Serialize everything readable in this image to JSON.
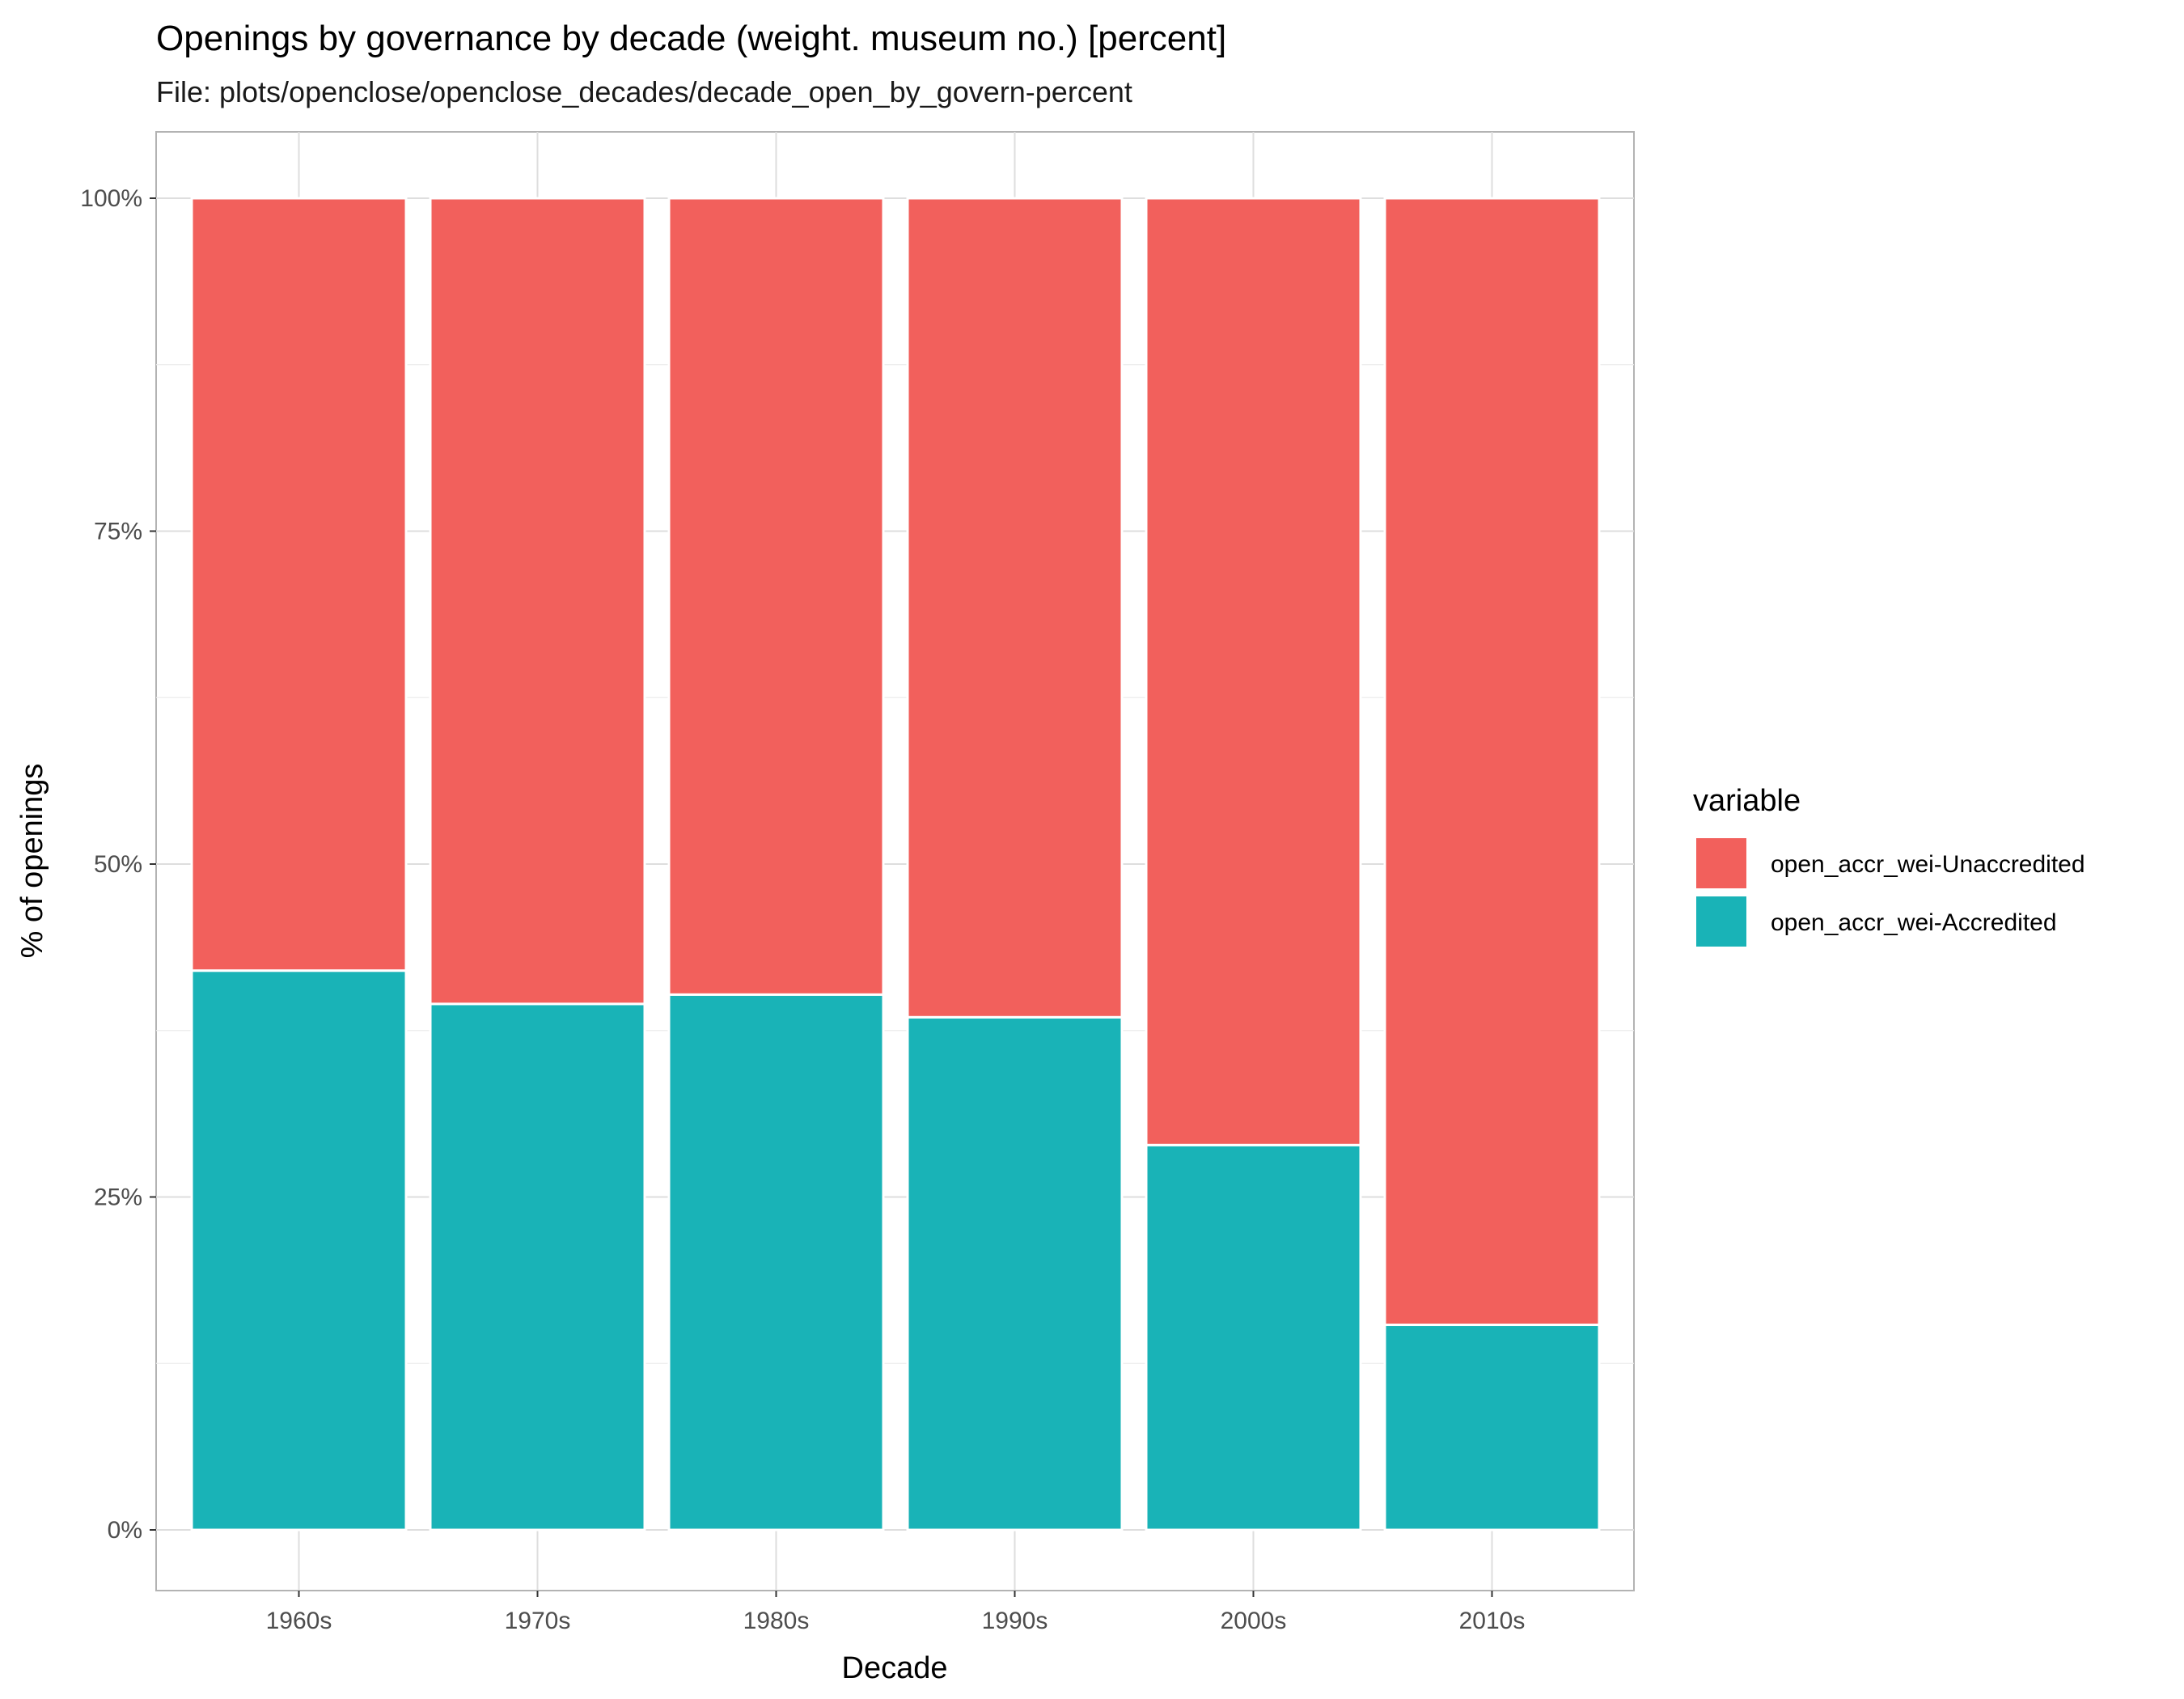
{
  "chart_data": {
    "type": "bar",
    "stacked": true,
    "normalized_percent": true,
    "title": "Openings by governance by decade (weight. museum no.) [percent]",
    "subtitle": "File: plots/openclose/openclose_decades/decade_open_by_govern-percent",
    "xlabel": "Decade",
    "ylabel": "% of openings",
    "categories": [
      "1960s",
      "1970s",
      "1980s",
      "1990s",
      "2000s",
      "2010s"
    ],
    "series": [
      {
        "name": "open_accr_wei-Accredited",
        "color": "#19B3B7",
        "values": [
          42,
          39.5,
          40.2,
          38.5,
          28.9,
          15.4
        ]
      },
      {
        "name": "open_accr_wei-Unaccredited",
        "color": "#F2605C",
        "values": [
          58,
          60.5,
          59.8,
          61.5,
          71.1,
          84.6
        ]
      }
    ],
    "ylim": [
      0,
      100
    ],
    "yticks": [
      0,
      25,
      50,
      75,
      100
    ],
    "ytick_labels": [
      "0%",
      "25%",
      "50%",
      "75%",
      "100%"
    ],
    "grid": true,
    "legend": {
      "title": "variable",
      "placement": "right",
      "entries": [
        "open_accr_wei-Unaccredited",
        "open_accr_wei-Accredited"
      ]
    }
  }
}
